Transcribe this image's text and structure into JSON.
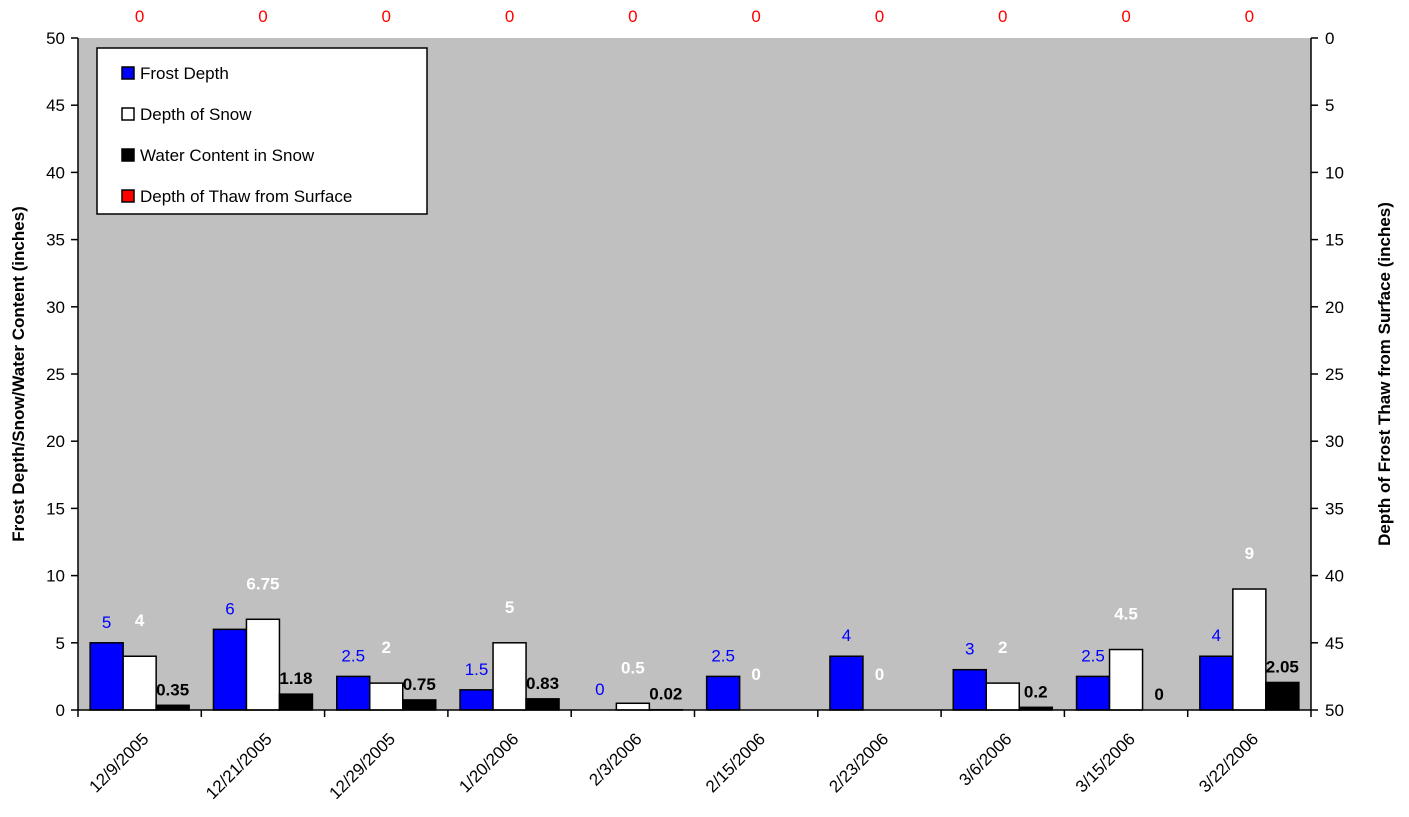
{
  "chart_data": {
    "type": "bar",
    "categories": [
      "12/9/2005",
      "12/21/2005",
      "12/29/2005",
      "1/20/2006",
      "2/3/2006",
      "2/15/2006",
      "2/23/2006",
      "3/6/2006",
      "3/15/2006",
      "3/22/2006"
    ],
    "series": [
      {
        "name": "Frost Depth",
        "axis": "left",
        "color": "#0000ff",
        "label_color": "#0000ff",
        "values": [
          5,
          6,
          2.5,
          1.5,
          0,
          2.5,
          4,
          3,
          2.5,
          4
        ],
        "labels": [
          "5",
          "6",
          "2.5",
          "1.5",
          "0",
          "2.5",
          "4",
          "3",
          "2.5",
          "4"
        ]
      },
      {
        "name": "Depth of Snow",
        "axis": "left",
        "color": "#ffffff",
        "label_color": "#ffffff",
        "values": [
          4,
          6.75,
          2,
          5,
          0.5,
          0,
          0,
          2,
          4.5,
          9
        ],
        "labels": [
          "4",
          "6.75",
          "2",
          "5",
          "0.5",
          "0",
          "0",
          "2",
          "4.5",
          "9"
        ]
      },
      {
        "name": "Water Content in Snow",
        "axis": "left",
        "color": "#000000",
        "label_color": "#000000",
        "values": [
          0.35,
          1.18,
          0.75,
          0.83,
          0.02,
          null,
          null,
          0.2,
          0,
          2.05
        ],
        "labels": [
          "0.35",
          "1.18",
          "0.75",
          "0.83",
          "0.02",
          "",
          "",
          "0.2",
          "0",
          "2.05"
        ]
      },
      {
        "name": "Depth of Thaw from Surface",
        "axis": "right",
        "color": "#ff0000",
        "label_color": "#ff0000",
        "values": [
          0,
          0,
          0,
          0,
          0,
          0,
          0,
          0,
          0,
          0
        ],
        "labels": [
          "0",
          "0",
          "0",
          "0",
          "0",
          "0",
          "0",
          "0",
          "0",
          "0"
        ]
      }
    ],
    "left_axis": {
      "label": "Frost Depth/Snow/Water Content (inches)",
      "min": 0,
      "max": 50,
      "step": 5
    },
    "right_axis": {
      "label": "Depth of Frost Thaw from Surface (inches)",
      "min": 0,
      "max": 50,
      "step": 5,
      "reversed": true
    },
    "plot_background": "#c0c0c0",
    "grid": false,
    "legend_position": "top-left"
  }
}
